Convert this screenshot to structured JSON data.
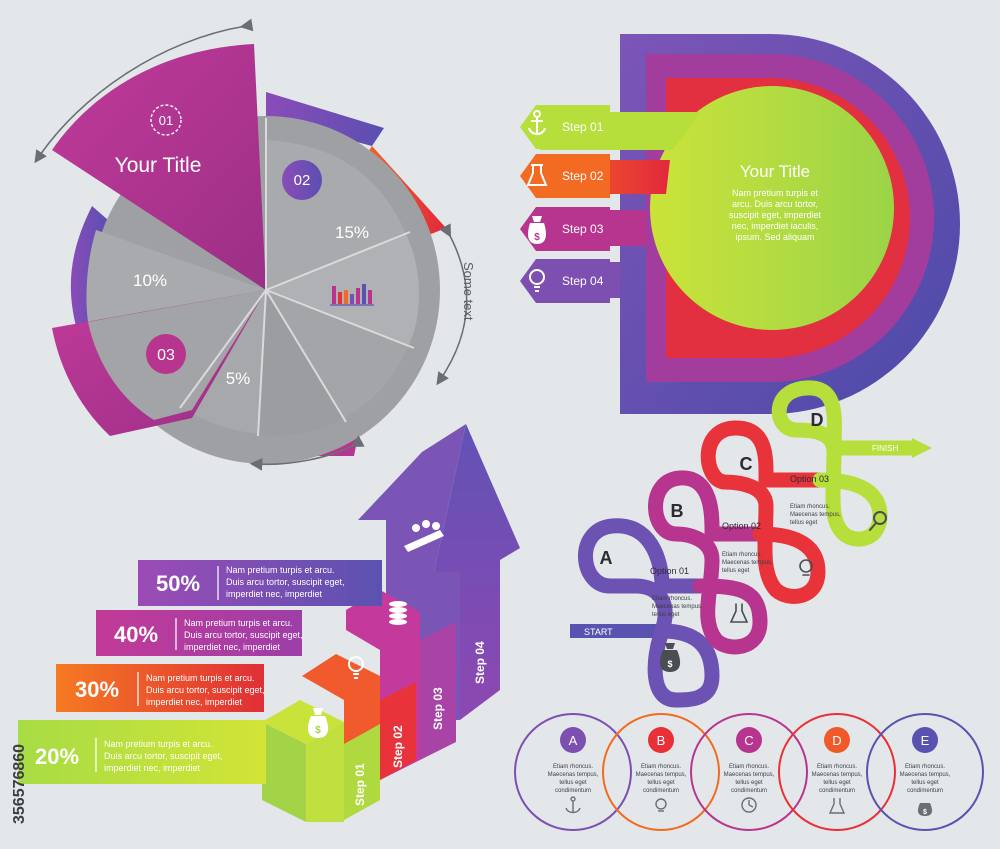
{
  "pie": {
    "badge_01": "01",
    "title": "Your Title",
    "badge_02": "02",
    "badge_03": "03",
    "pct_15": "15%",
    "pct_10": "10%",
    "pct_5": "5%",
    "side_text": "Some text"
  },
  "rings": {
    "title": "Your Title",
    "body": [
      "Nam pretium turpis et",
      "arcu. Duis arcu tortor,",
      "suscipit eget, imperdiet",
      "nec, imperdiet  iaculis,",
      "ipsum. Sed aliquam"
    ],
    "steps": [
      {
        "label": "Step 01",
        "icon": "anchor-icon"
      },
      {
        "label": "Step 02",
        "icon": "flask-icon"
      },
      {
        "label": "Step 03",
        "icon": "money-bag-icon"
      },
      {
        "label": "Step 04",
        "icon": "lightbulb-icon"
      }
    ]
  },
  "stairs": {
    "bars": [
      {
        "pct": "50%",
        "lines": [
          "Nam pretium turpis et arcu.",
          "Duis arcu tortor, suscipit eget,",
          "imperdiet nec, imperdiet"
        ]
      },
      {
        "pct": "40%",
        "lines": [
          "Nam pretium turpis et arcu.",
          "Duis arcu tortor, suscipit eget,",
          "imperdiet nec, imperdiet"
        ]
      },
      {
        "pct": "30%",
        "lines": [
          "Nam pretium turpis et arcu.",
          "Duis arcu tortor, suscipit eget,",
          "imperdiet nec, imperdiet"
        ]
      },
      {
        "pct": "20%",
        "lines": [
          "Nam pretium turpis et arcu.",
          "Duis arcu tortor, suscipit eget,",
          "imperdiet nec, imperdiet"
        ]
      }
    ],
    "steps": [
      "Step 01",
      "Step 02",
      "Step 03",
      "Step 04"
    ]
  },
  "loops": {
    "letters": [
      "A",
      "B",
      "C",
      "D"
    ],
    "start": "START",
    "finish": "FINISH",
    "options": [
      "Option 01",
      "Option 02",
      "Option 03"
    ],
    "small_text": [
      "Etiam rhoncus.",
      "Maecenas tempus,",
      "tellus eget"
    ]
  },
  "circles": {
    "items": [
      {
        "letter": "A",
        "icon": "anchor-icon"
      },
      {
        "letter": "B",
        "icon": "lightbulb-icon"
      },
      {
        "letter": "C",
        "icon": "clock-icon"
      },
      {
        "letter": "D",
        "icon": "flask-icon"
      },
      {
        "letter": "E",
        "icon": "money-bag-icon"
      }
    ],
    "text": [
      "Etiam rhoncus.",
      "Maecenas tempus,",
      "tellus eget",
      "condimentum"
    ]
  },
  "watermark": "356576860",
  "colors": {
    "magenta": "#b8358f",
    "purple": "#7c4fb0",
    "indigo": "#5a52b0",
    "red": "#e83036",
    "orange": "#f36a22",
    "lime": "#b6df3c",
    "gray": "#a8a8ab"
  }
}
